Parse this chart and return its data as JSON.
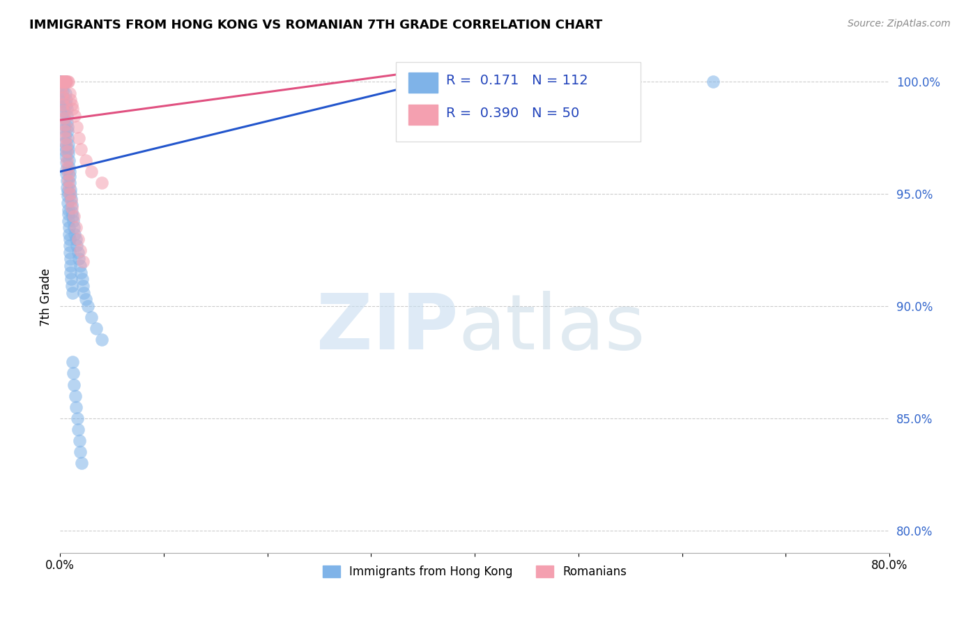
{
  "title": "IMMIGRANTS FROM HONG KONG VS ROMANIAN 7TH GRADE CORRELATION CHART",
  "source": "Source: ZipAtlas.com",
  "ylabel": "7th Grade",
  "y_ticks": [
    80.0,
    85.0,
    90.0,
    95.0,
    100.0
  ],
  "x_lim": [
    0.0,
    80.0
  ],
  "y_lim": [
    79.0,
    101.8
  ],
  "hk_R": 0.171,
  "hk_N": 112,
  "rom_R": 0.39,
  "rom_N": 50,
  "hk_color": "#7fb3e8",
  "rom_color": "#f4a0b0",
  "hk_line_color": "#2255cc",
  "rom_line_color": "#e05080",
  "legend_label_hk": "Immigrants from Hong Kong",
  "legend_label_rom": "Romanians",
  "hk_points_x": [
    0.05,
    0.08,
    0.1,
    0.12,
    0.15,
    0.18,
    0.2,
    0.22,
    0.25,
    0.28,
    0.3,
    0.32,
    0.35,
    0.38,
    0.4,
    0.42,
    0.45,
    0.48,
    0.5,
    0.52,
    0.55,
    0.58,
    0.6,
    0.62,
    0.65,
    0.68,
    0.7,
    0.72,
    0.75,
    0.78,
    0.8,
    0.82,
    0.85,
    0.88,
    0.9,
    0.92,
    0.95,
    0.98,
    1.0,
    1.05,
    1.1,
    1.15,
    1.2,
    1.25,
    1.3,
    1.4,
    1.5,
    1.6,
    1.7,
    1.8,
    1.9,
    2.0,
    2.1,
    2.2,
    2.3,
    2.5,
    2.7,
    3.0,
    3.5,
    4.0,
    0.06,
    0.09,
    0.11,
    0.13,
    0.16,
    0.19,
    0.21,
    0.23,
    0.26,
    0.29,
    0.31,
    0.33,
    0.36,
    0.39,
    0.41,
    0.43,
    0.46,
    0.49,
    0.51,
    0.53,
    0.56,
    0.59,
    0.61,
    0.63,
    0.66,
    0.69,
    0.71,
    0.73,
    0.76,
    0.79,
    0.81,
    0.83,
    0.86,
    0.89,
    0.91,
    0.93,
    0.96,
    0.99,
    1.02,
    1.07,
    1.12,
    1.18,
    1.22,
    1.28,
    1.35,
    1.45,
    1.55,
    1.65,
    1.75,
    1.85,
    1.95,
    2.05,
    55.0,
    63.0
  ],
  "hk_points_y": [
    100.0,
    100.0,
    100.0,
    100.0,
    100.0,
    100.0,
    100.0,
    100.0,
    100.0,
    100.0,
    100.0,
    100.0,
    100.0,
    100.0,
    100.0,
    100.0,
    100.0,
    100.0,
    100.0,
    100.0,
    99.5,
    99.2,
    99.0,
    98.8,
    98.5,
    98.2,
    98.0,
    97.8,
    97.5,
    97.2,
    97.0,
    96.8,
    96.5,
    96.2,
    96.0,
    95.8,
    95.5,
    95.2,
    95.0,
    94.8,
    94.5,
    94.2,
    94.0,
    93.8,
    93.5,
    93.2,
    93.0,
    92.7,
    92.4,
    92.1,
    91.8,
    91.5,
    91.2,
    90.9,
    90.6,
    90.3,
    90.0,
    89.5,
    89.0,
    88.5,
    100.0,
    100.0,
    100.0,
    100.0,
    100.0,
    100.0,
    99.8,
    99.6,
    99.3,
    99.1,
    98.9,
    98.7,
    98.4,
    98.1,
    97.9,
    97.6,
    97.3,
    97.1,
    96.9,
    96.7,
    96.4,
    96.1,
    95.9,
    95.6,
    95.3,
    95.1,
    94.9,
    94.6,
    94.3,
    94.1,
    93.8,
    93.5,
    93.2,
    93.0,
    92.7,
    92.4,
    92.1,
    91.8,
    91.5,
    91.2,
    90.9,
    90.6,
    87.5,
    87.0,
    86.5,
    86.0,
    85.5,
    85.0,
    84.5,
    84.0,
    83.5,
    83.0,
    100.0,
    100.0
  ],
  "rom_points_x": [
    0.1,
    0.15,
    0.2,
    0.25,
    0.3,
    0.35,
    0.4,
    0.45,
    0.5,
    0.55,
    0.6,
    0.7,
    0.8,
    0.9,
    1.0,
    1.1,
    1.2,
    1.4,
    1.6,
    1.8,
    2.0,
    2.5,
    3.0,
    4.0,
    0.12,
    0.18,
    0.22,
    0.28,
    0.32,
    0.38,
    0.42,
    0.48,
    0.52,
    0.58,
    0.62,
    0.68,
    0.72,
    0.78,
    0.82,
    0.88,
    0.92,
    1.05,
    1.15,
    1.3,
    1.5,
    1.7,
    1.9,
    2.2,
    33.0,
    55.0
  ],
  "rom_points_y": [
    100.0,
    100.0,
    100.0,
    100.0,
    100.0,
    100.0,
    100.0,
    100.0,
    100.0,
    100.0,
    100.0,
    100.0,
    100.0,
    99.5,
    99.2,
    99.0,
    98.8,
    98.5,
    98.0,
    97.5,
    97.0,
    96.5,
    96.0,
    95.5,
    99.8,
    99.5,
    99.3,
    99.0,
    98.7,
    98.4,
    98.1,
    97.8,
    97.5,
    97.2,
    96.9,
    96.5,
    96.2,
    95.9,
    95.6,
    95.3,
    95.0,
    94.7,
    94.4,
    94.0,
    93.5,
    93.0,
    92.5,
    92.0,
    100.0,
    100.0
  ],
  "hk_line_x": [
    0.0,
    40.0
  ],
  "hk_line_y": [
    96.0,
    100.5
  ],
  "rom_line_x": [
    0.0,
    40.0
  ],
  "rom_line_y": [
    98.3,
    100.8
  ]
}
